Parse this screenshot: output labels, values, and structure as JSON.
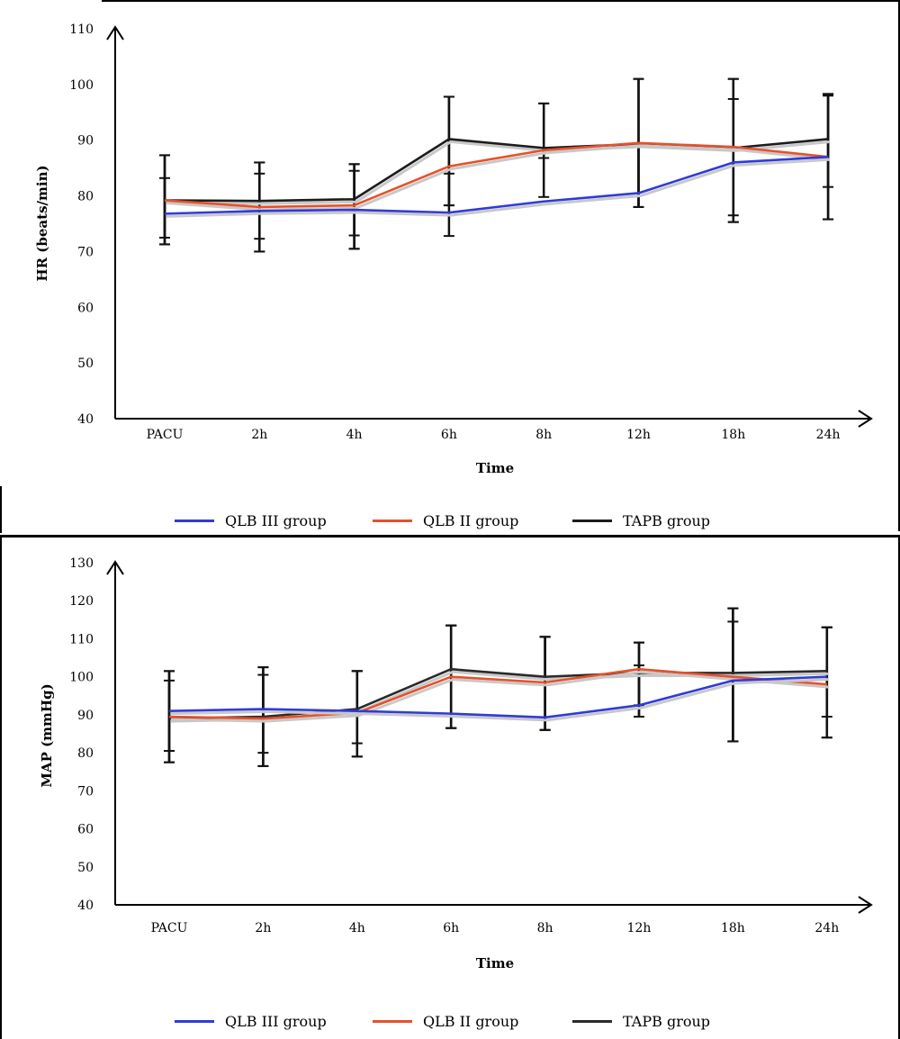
{
  "chart_data": [
    {
      "type": "line",
      "title": "",
      "xlabel": "Time",
      "ylabel": "HR (beats/min)",
      "categories": [
        "PACU",
        "2h",
        "4h",
        "6h",
        "8h",
        "12h",
        "18h",
        "24h"
      ],
      "ylim": [
        40,
        110
      ],
      "yticks": [
        40,
        50,
        60,
        70,
        80,
        90,
        100,
        110
      ],
      "grid": false,
      "legend_position": "bottom",
      "series": [
        {
          "name": "QLB III group",
          "color": "#2f3bd8",
          "values": [
            76.8,
            77.3,
            77.5,
            77.0,
            79.0,
            80.5,
            86.0,
            87.0
          ],
          "error_bars": [
            [
              72.5,
              83.2
            ],
            [
              72.3,
              84.0
            ],
            [
              72.9,
              84.5
            ],
            [
              72.8,
              84.0
            ],
            [
              79.6,
              79.6
            ],
            [
              78.0,
              89.0
            ],
            [
              76.5,
              97.4
            ],
            [
              81.6,
              98.0
            ]
          ]
        },
        {
          "name": "QLB II group",
          "color": "#e8502a",
          "values": [
            79.2,
            78.0,
            78.3,
            85.3,
            88.2,
            89.5,
            88.8,
            87.0
          ],
          "error_bars": [
            [
              71.3,
              87.3
            ],
            [
              70.0,
              86.0
            ],
            [
              70.5,
              85.7
            ],
            [
              78.3,
              97.8
            ],
            [
              79.8,
              96.6
            ],
            [
              78.0,
              101.0
            ],
            [
              75.3,
              101.0
            ],
            [
              75.8,
              98.3
            ]
          ]
        },
        {
          "name": "TAPB group",
          "color": "#1c1c1c",
          "values": [
            79.2,
            79.1,
            79.4,
            90.2,
            88.6,
            89.3,
            88.6,
            90.2
          ],
          "error_bars": [
            [
              71.3,
              87.3
            ],
            [
              70.0,
              86.0
            ],
            [
              70.5,
              85.7
            ],
            [
              78.3,
              97.8
            ],
            [
              86.8,
              96.6
            ],
            [
              78.0,
              101.0
            ],
            [
              75.3,
              101.0
            ],
            [
              75.8,
              98.3
            ]
          ]
        }
      ]
    },
    {
      "type": "line",
      "title": "",
      "xlabel": "Time",
      "ylabel": "MAP (mmHg)",
      "categories": [
        "PACU",
        "2h",
        "4h",
        "6h",
        "8h",
        "12h",
        "18h",
        "24h"
      ],
      "ylim": [
        40,
        130
      ],
      "yticks": [
        40,
        50,
        60,
        70,
        80,
        90,
        100,
        110,
        120,
        130
      ],
      "grid": false,
      "legend_position": "bottom",
      "series": [
        {
          "name": "QLB III group",
          "color": "#2f3bd8",
          "values": [
            91.0,
            91.5,
            91.0,
            90.3,
            89.3,
            92.5,
            99.0,
            100.0
          ],
          "error_bars": [
            [
              80.5,
              99.0
            ],
            [
              80.0,
              100.5
            ],
            [
              82.5,
              101.5
            ],
            [
              86.5,
              113.5
            ],
            [
              86.0,
              110.5
            ],
            [
              89.5,
              103.0
            ],
            [
              83.0,
              114.5
            ],
            [
              89.5,
              113.0
            ]
          ]
        },
        {
          "name": "QLB II group",
          "color": "#e8502a",
          "values": [
            89.5,
            89.0,
            90.5,
            100.0,
            98.5,
            102.0,
            100.0,
            98.0
          ],
          "error_bars": [
            [
              77.5,
              101.5
            ],
            [
              76.5,
              102.5
            ],
            [
              79.0,
              101.5
            ],
            [
              86.5,
              113.5
            ],
            [
              86.0,
              110.5
            ],
            [
              92.5,
              109.0
            ],
            [
              83.0,
              118.0
            ],
            [
              84.0,
              113.0
            ]
          ]
        },
        {
          "name": "TAPB group",
          "color": "#2a2a2a",
          "values": [
            89.0,
            89.5,
            91.5,
            102.0,
            100.0,
            101.0,
            101.0,
            101.5
          ],
          "error_bars": [
            [
              77.5,
              101.5
            ],
            [
              76.5,
              102.5
            ],
            [
              79.0,
              101.5
            ],
            [
              86.5,
              113.5
            ],
            [
              86.0,
              110.5
            ],
            [
              89.5,
              109.0
            ],
            [
              83.0,
              118.0
            ],
            [
              84.0,
              113.0
            ]
          ]
        }
      ]
    }
  ]
}
